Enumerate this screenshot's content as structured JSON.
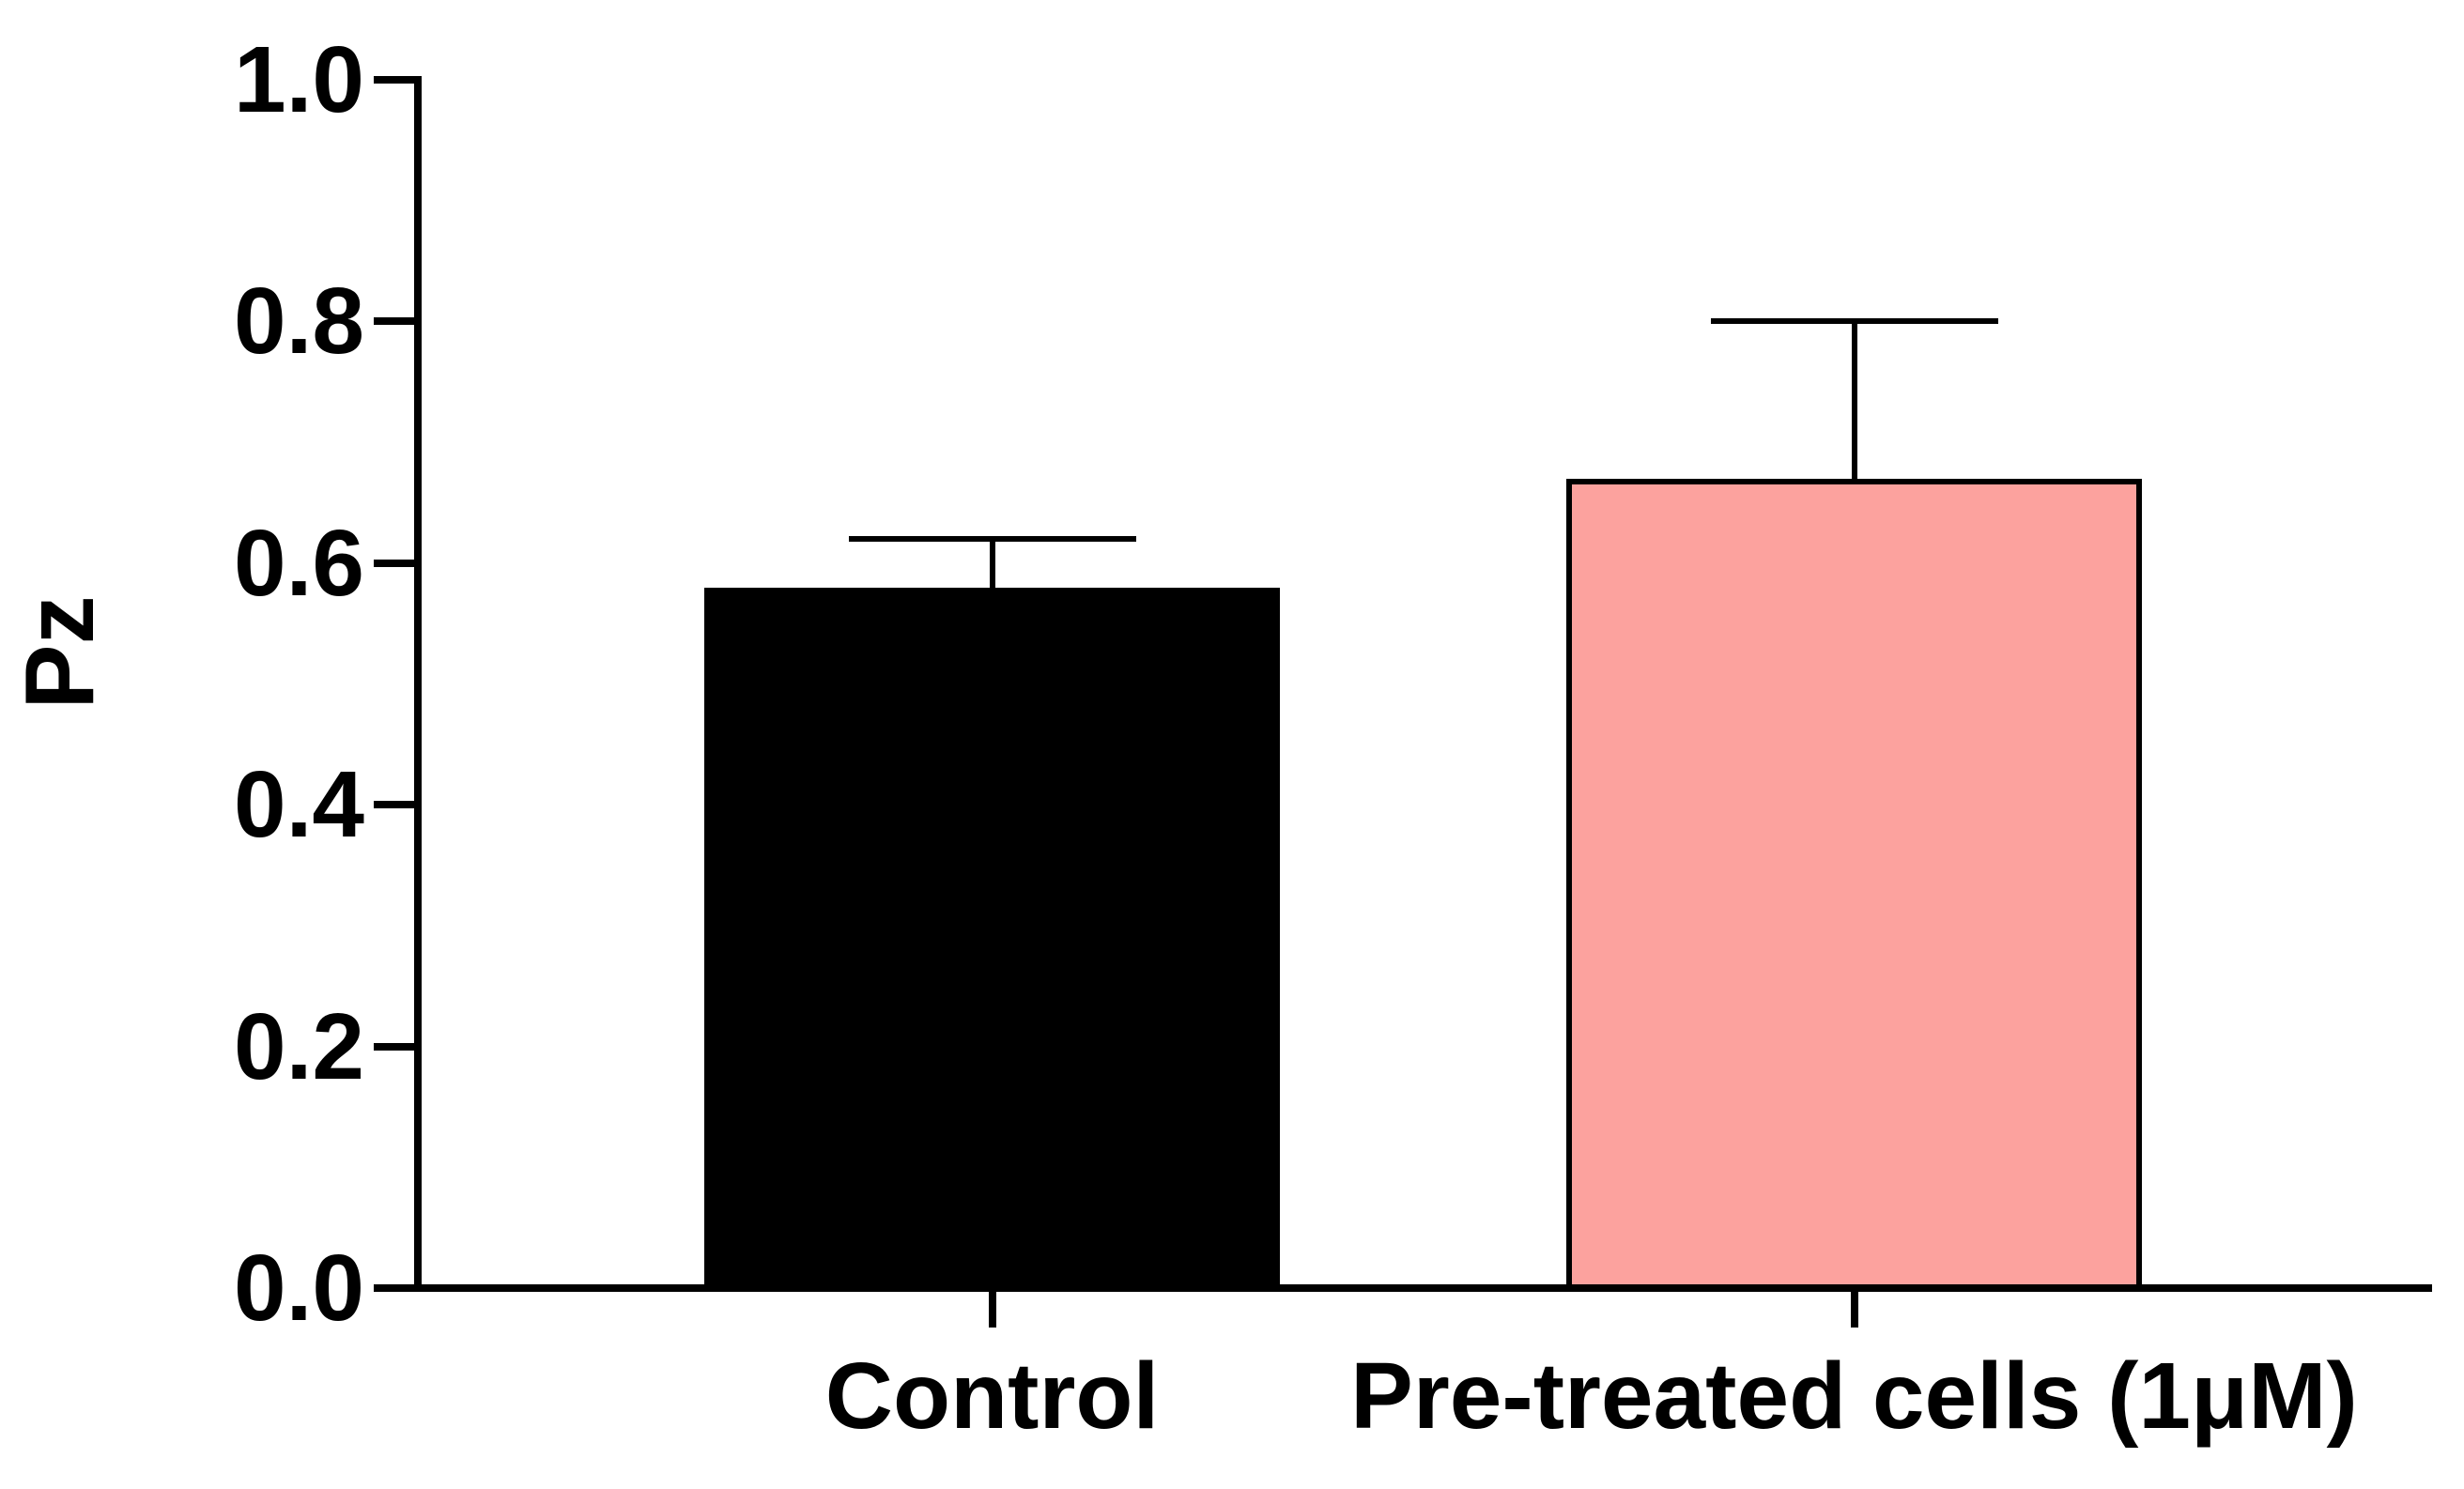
{
  "chart_data": {
    "type": "bar",
    "title": "",
    "ylabel": "Pz",
    "xlabel": "",
    "categories": [
      "Control",
      "Pre-treated cells (1μM)"
    ],
    "values": [
      0.58,
      0.67
    ],
    "error_bar_tops": [
      0.62,
      0.8
    ],
    "error_bars": "upper only, capped",
    "bar_colors": [
      "#000000",
      "#FCA29E"
    ],
    "bar_outline_color": "#000000",
    "axis_color": "#000000",
    "text_color": "#000000",
    "background_color": "#FFFFFF",
    "ylim": [
      0.0,
      1.0
    ],
    "yticks": [
      0.0,
      0.2,
      0.4,
      0.6,
      0.8,
      1.0
    ],
    "ytick_labels": [
      "0.0",
      "0.2",
      "0.4",
      "0.6",
      "0.8",
      "1.0"
    ],
    "grid": false,
    "legend_position": "none"
  }
}
